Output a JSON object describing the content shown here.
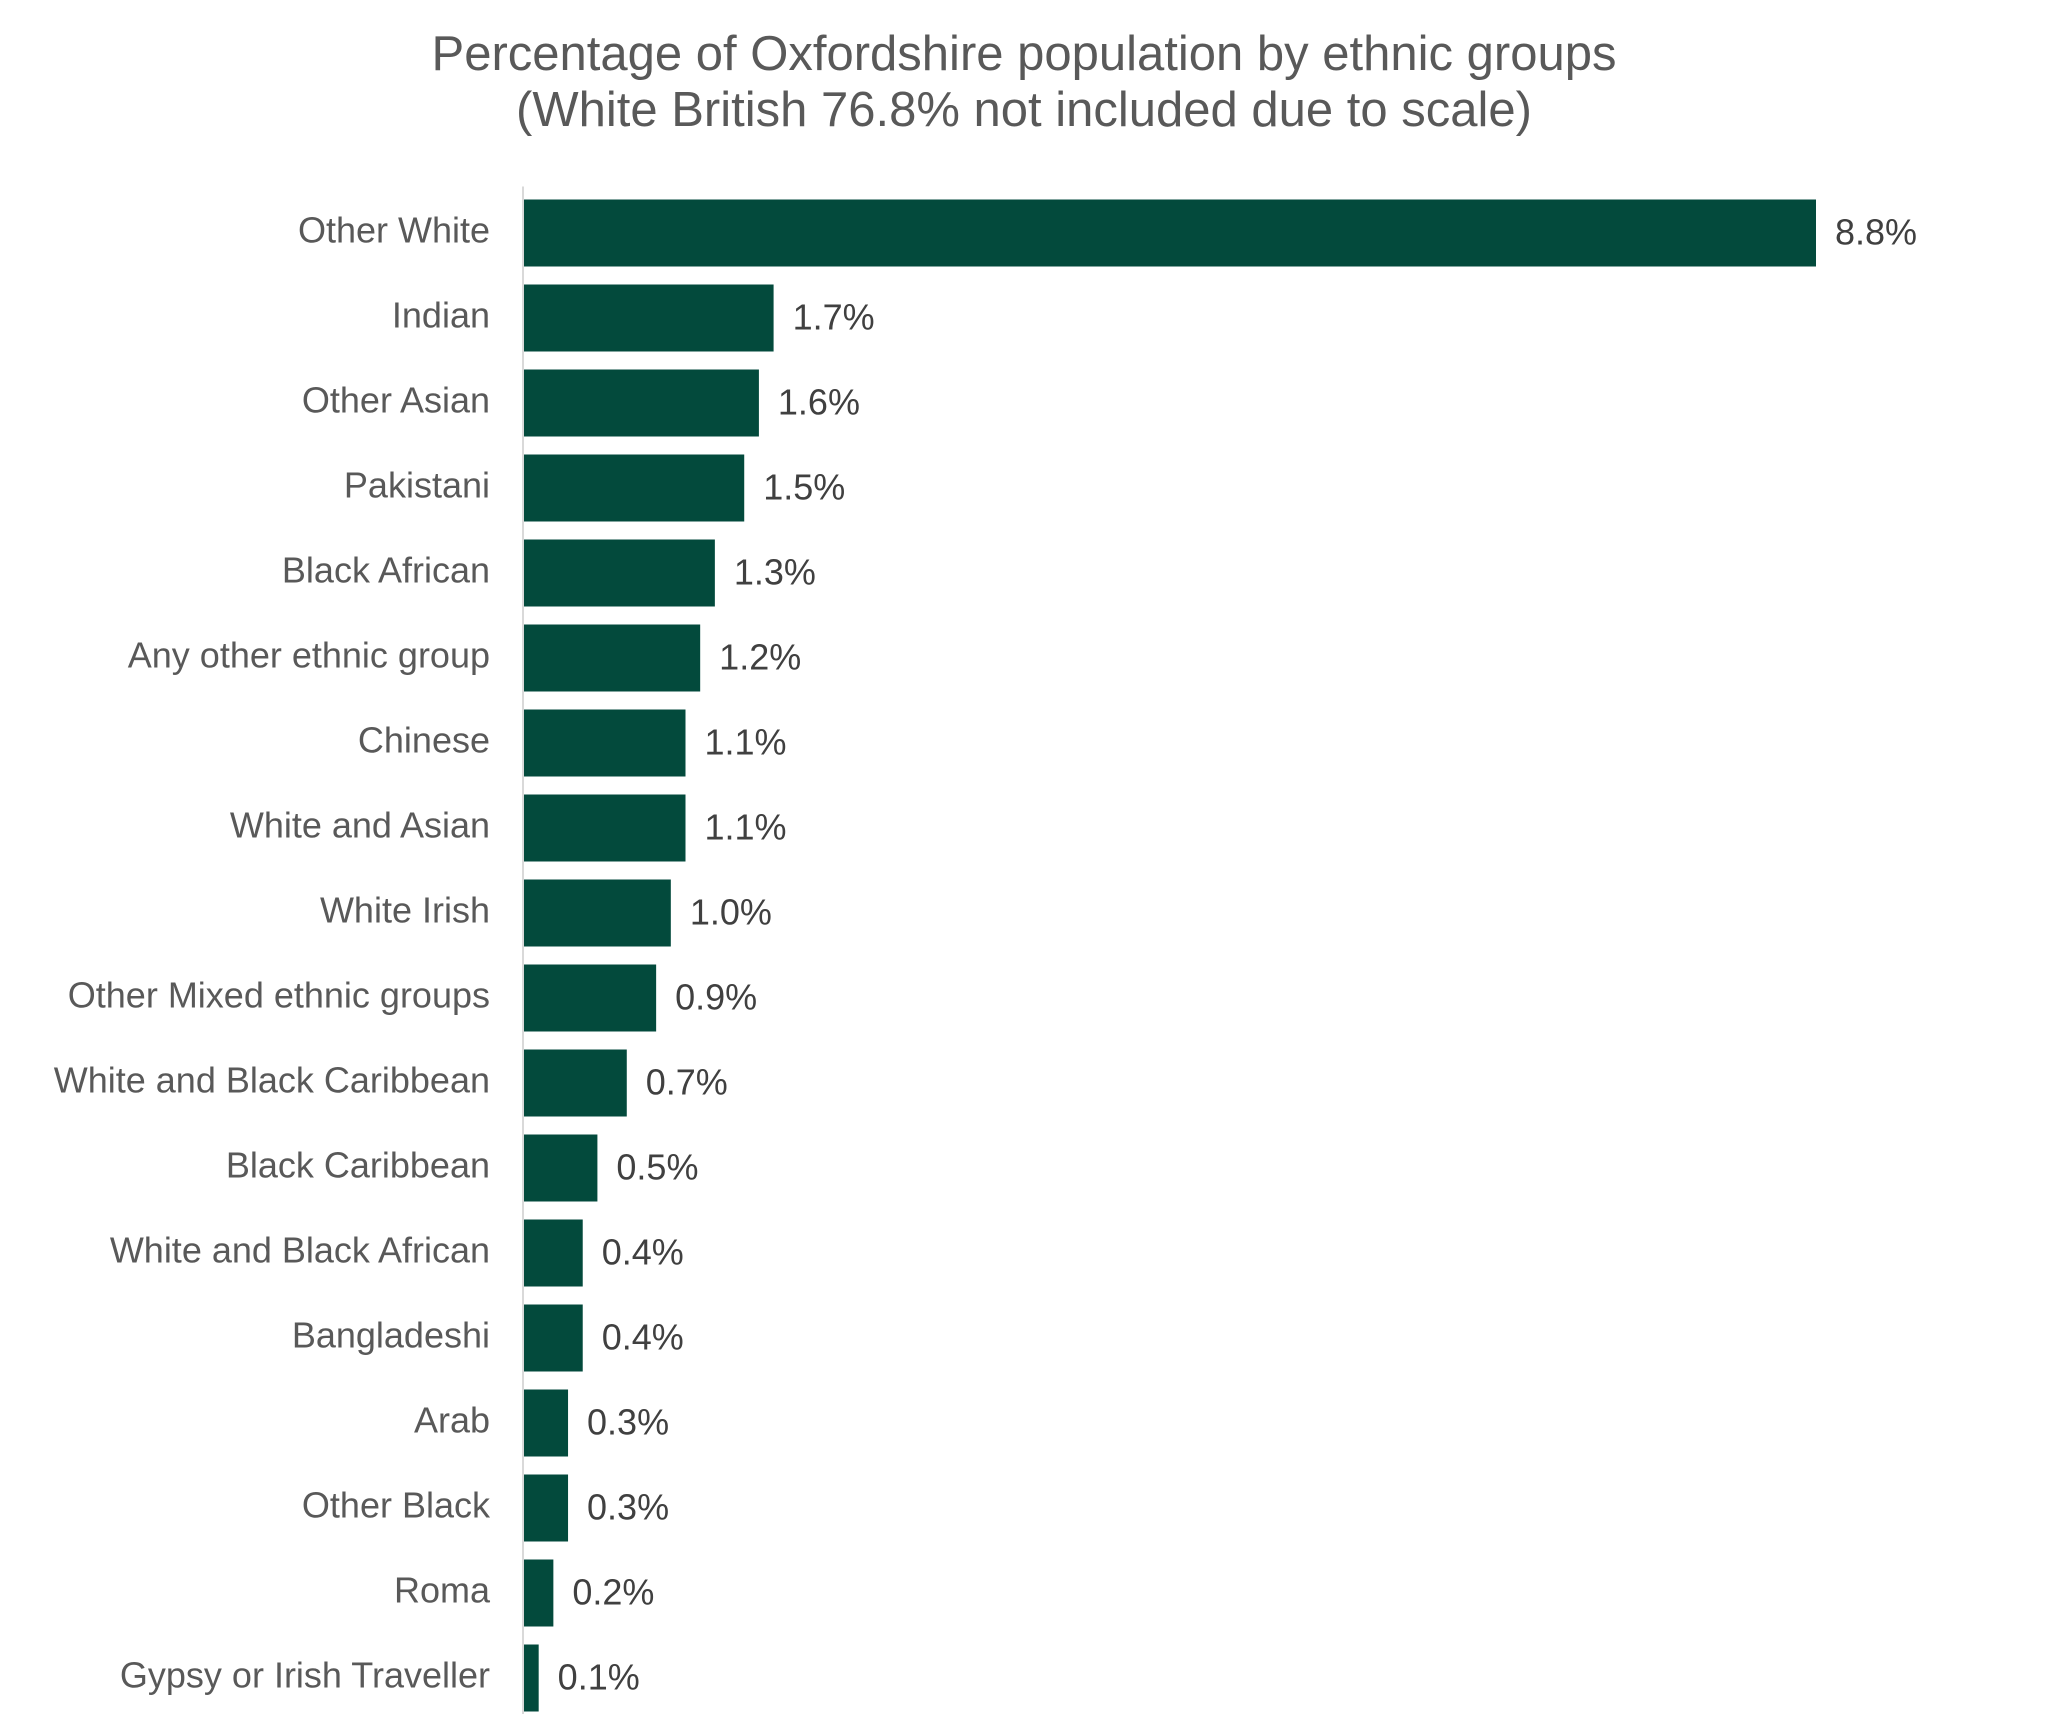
{
  "chart_data": {
    "type": "bar",
    "orientation": "horizontal",
    "title": "Percentage of Oxfordshire population by ethnic groups",
    "subtitle": "(White British 76.8% not included due to scale)",
    "categories": [
      "Other White",
      "Indian",
      "Other Asian",
      "Pakistani",
      "Black African",
      "Any other ethnic group",
      "Chinese",
      "White and Asian",
      "White Irish",
      "Other Mixed ethnic groups",
      "White and Black Caribbean",
      "Black Caribbean",
      "White and Black African",
      "Bangladeshi",
      "Arab",
      "Other Black",
      "Roma",
      "Gypsy or Irish Traveller"
    ],
    "values": [
      8.8,
      1.7,
      1.6,
      1.5,
      1.3,
      1.2,
      1.1,
      1.1,
      1.0,
      0.9,
      0.7,
      0.5,
      0.4,
      0.4,
      0.3,
      0.3,
      0.2,
      0.1
    ],
    "value_labels": [
      "8.8%",
      "1.7%",
      "1.6%",
      "1.5%",
      "1.3%",
      "1.2%",
      "1.1%",
      "1.1%",
      "1.0%",
      "0.9%",
      "0.7%",
      "0.5%",
      "0.4%",
      "0.4%",
      "0.3%",
      "0.3%",
      "0.2%",
      "0.1%"
    ],
    "xlim": [
      0,
      8.8
    ],
    "grid": false,
    "legend": "none",
    "bar_color": "#034a3c",
    "axis_color": "#d9d9d9"
  }
}
